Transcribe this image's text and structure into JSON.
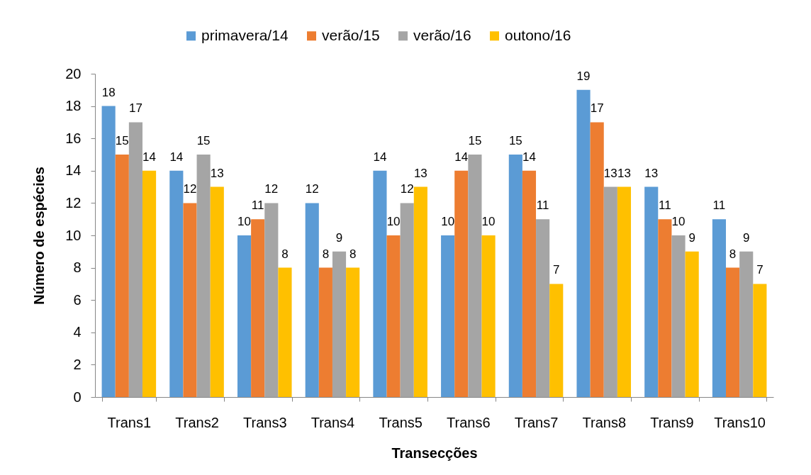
{
  "chart_data": {
    "type": "bar",
    "xlabel": "Transecções",
    "ylabel": "Número de espécies",
    "categories": [
      "Trans1",
      "Trans2",
      "Trans3",
      "Trans4",
      "Trans5",
      "Trans6",
      "Trans7",
      "Trans8",
      "Trans9",
      "Trans10"
    ],
    "series": [
      {
        "name": "primavera/14",
        "color": "#5b9bd5",
        "values": [
          18,
          14,
          10,
          12,
          14,
          10,
          15,
          19,
          13,
          11
        ]
      },
      {
        "name": "verão/15",
        "color": "#ed7d31",
        "values": [
          15,
          12,
          11,
          8,
          10,
          14,
          14,
          17,
          11,
          8
        ]
      },
      {
        "name": "verão/16",
        "color": "#a5a5a5",
        "values": [
          17,
          15,
          12,
          9,
          12,
          15,
          11,
          13,
          10,
          9
        ]
      },
      {
        "name": "outono/16",
        "color": "#ffc000",
        "values": [
          14,
          13,
          8,
          8,
          13,
          10,
          7,
          13,
          9,
          7
        ]
      }
    ],
    "ylim": [
      0,
      20
    ],
    "yticks": [
      0,
      2,
      4,
      6,
      8,
      10,
      12,
      14,
      16,
      18,
      20
    ],
    "data_labels": true,
    "legend": "top",
    "grid": false
  }
}
